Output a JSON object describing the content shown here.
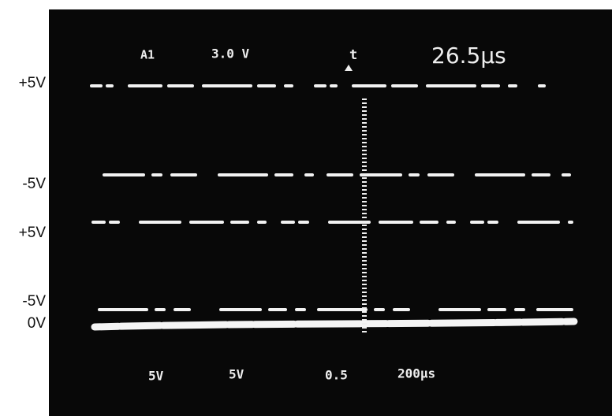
{
  "left_labels": [
    "+5V",
    "-5V",
    "+5V",
    "-5V",
    "0V"
  ],
  "screen": {
    "top": {
      "channel": "A1",
      "scale": "3.0 V",
      "trigger": "t",
      "time": "26.5µs"
    },
    "bottom": [
      "5V",
      "5V",
      "0.5",
      "200µs"
    ]
  }
}
